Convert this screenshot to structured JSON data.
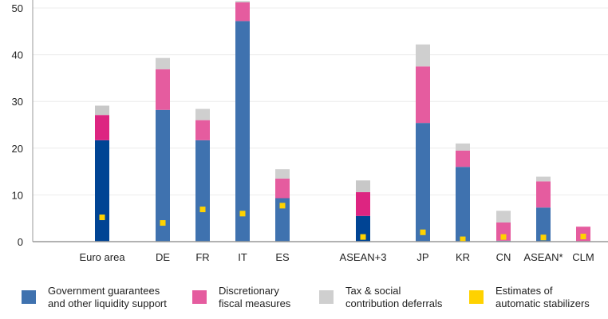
{
  "chart_data": {
    "type": "bar",
    "stacked": true,
    "title": "",
    "xlabel": "",
    "ylabel": "",
    "ylim": [
      0,
      50
    ],
    "yticks": [
      0,
      10,
      20,
      30,
      40,
      50
    ],
    "grid": true,
    "categories": [
      "Euro area",
      "DE",
      "FR",
      "IT",
      "ES",
      "ASEAN+3",
      "JP",
      "KR",
      "CN",
      "ASEAN*",
      "CLM"
    ],
    "highlight_categories": [
      "Euro area",
      "ASEAN+3"
    ],
    "series": [
      {
        "name": "Government guarantees and other liquidity support",
        "color": "#3f72af",
        "highlight_color": "#004494",
        "values": [
          21.7,
          28.2,
          21.7,
          47.2,
          9.3,
          5.5,
          25.4,
          16.0,
          0.2,
          7.3,
          0.0
        ]
      },
      {
        "name": "Discretionary fiscal measures",
        "color": "#e55c9f",
        "highlight_color": "#dd2581",
        "values": [
          5.4,
          8.7,
          4.3,
          4.0,
          4.2,
          5.1,
          12.1,
          3.5,
          3.9,
          5.6,
          3.2
        ]
      },
      {
        "name": "Tax & social contribution deferrals",
        "color": "#cfcfcf",
        "highlight_color": "#c8c8c8",
        "values": [
          2.0,
          2.4,
          2.4,
          0.3,
          2.0,
          2.5,
          4.7,
          1.5,
          2.5,
          1.0,
          0.0
        ]
      }
    ],
    "markers": {
      "name": "Estimates of automatic stabilizers",
      "color": "#ffd200",
      "values": [
        5.2,
        4.0,
        6.9,
        6.0,
        7.7,
        1.0,
        2.0,
        0.5,
        1.0,
        0.9,
        1.1
      ]
    },
    "legend_position": "bottom"
  },
  "legend": [
    {
      "label": "Government guarantees\nand other liquidity support",
      "color": "#3f72af"
    },
    {
      "label": "Discretionary\nfiscal measures",
      "color": "#e55c9f"
    },
    {
      "label": "Tax & social\ncontribution deferrals",
      "color": "#cfcfcf"
    },
    {
      "label": "Estimates of\nautomatic stabilizers",
      "color": "#ffd200"
    }
  ]
}
